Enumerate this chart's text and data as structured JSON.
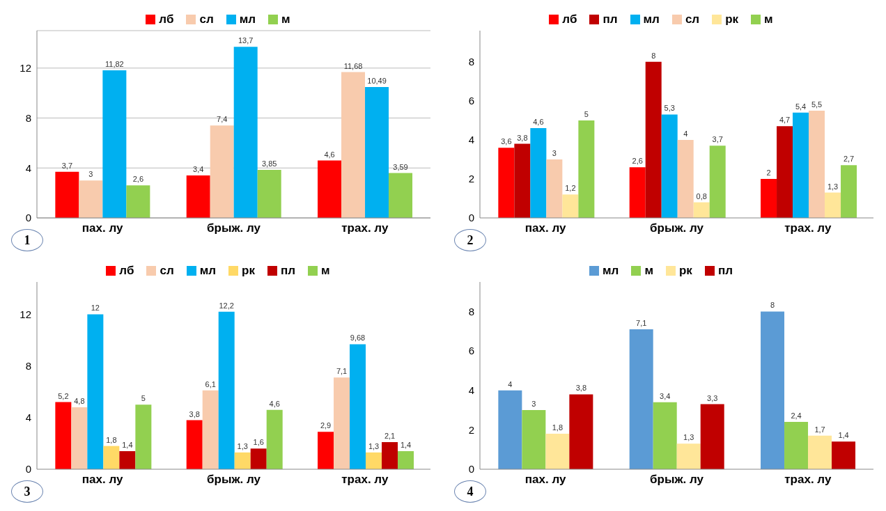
{
  "chart_data": [
    {
      "type": "bar",
      "categories": [
        "пах. лу",
        "брыж. лу",
        "трах. лу"
      ],
      "ylim": [
        0,
        15
      ],
      "yticks": [
        0,
        4,
        8,
        12
      ],
      "grid": "y",
      "legend": "top",
      "annotations": [
        "1"
      ],
      "series": [
        {
          "name": "лб",
          "color": "#ff0000",
          "values": [
            3.7,
            3.4,
            4.6
          ],
          "value_labels": [
            "3,7",
            "3,4",
            "4,6"
          ]
        },
        {
          "name": "сл",
          "color": "#f8cbad",
          "values": [
            3,
            7.4,
            11.68
          ],
          "value_labels": [
            "3",
            "7,4",
            "11,68"
          ]
        },
        {
          "name": "мл",
          "color": "#00b0f0",
          "values": [
            11.82,
            13.7,
            10.49
          ],
          "value_labels": [
            "11,82",
            "13,7",
            "10,49"
          ]
        },
        {
          "name": "м",
          "color": "#92d050",
          "values": [
            2.6,
            3.85,
            3.59
          ],
          "value_labels": [
            "2,6",
            "3,85",
            "3,59"
          ]
        }
      ]
    },
    {
      "type": "bar",
      "categories": [
        "пах. лу",
        "брыж. лу",
        "трах. лу"
      ],
      "ylim": [
        0,
        9.6
      ],
      "yticks": [
        0,
        2,
        4,
        6,
        8
      ],
      "grid": false,
      "legend": "top",
      "annotations": [
        "2"
      ],
      "series": [
        {
          "name": "лб",
          "color": "#ff0000",
          "values": [
            3.6,
            2.6,
            2
          ],
          "value_labels": [
            "3,6",
            "2,6",
            "2"
          ]
        },
        {
          "name": "пл",
          "color": "#c00000",
          "values": [
            3.8,
            8,
            4.7
          ],
          "value_labels": [
            "3,8",
            "8",
            "4,7"
          ]
        },
        {
          "name": "мл",
          "color": "#00b0f0",
          "values": [
            4.6,
            5.3,
            5.4
          ],
          "value_labels": [
            "4,6",
            "5,3",
            "5,4"
          ]
        },
        {
          "name": "сл",
          "color": "#f8cbad",
          "values": [
            3,
            4,
            5.5
          ],
          "value_labels": [
            "3",
            "4",
            "5,5"
          ]
        },
        {
          "name": "рк",
          "color": "#ffe699",
          "values": [
            1.2,
            0.8,
            1.3
          ],
          "value_labels": [
            "1,2",
            "0,8",
            "1,3"
          ]
        },
        {
          "name": "м",
          "color": "#92d050",
          "values": [
            5,
            3.7,
            2.7
          ],
          "value_labels": [
            "5",
            "3,7",
            "2,7"
          ]
        }
      ]
    },
    {
      "type": "bar",
      "categories": [
        "пах. лу",
        "брыж. лу",
        "трах. лу"
      ],
      "ylim": [
        0,
        14.5
      ],
      "yticks": [
        0,
        4,
        8,
        12
      ],
      "grid": false,
      "legend": "top",
      "annotations": [
        "3"
      ],
      "series": [
        {
          "name": "лб",
          "color": "#ff0000",
          "values": [
            5.2,
            3.8,
            2.9
          ],
          "value_labels": [
            "5,2",
            "3,8",
            "2,9"
          ]
        },
        {
          "name": "сл",
          "color": "#f8cbad",
          "values": [
            4.8,
            6.1,
            7.1
          ],
          "value_labels": [
            "4,8",
            "6,1",
            "7,1"
          ]
        },
        {
          "name": "мл",
          "color": "#00b0f0",
          "values": [
            12,
            12.2,
            9.68
          ],
          "value_labels": [
            "12",
            "12,2",
            "9,68"
          ]
        },
        {
          "name": "рк",
          "color": "#ffd966",
          "values": [
            1.8,
            1.3,
            1.3
          ],
          "value_labels": [
            "1,8",
            "1,3",
            "1,3"
          ]
        },
        {
          "name": "пл",
          "color": "#c00000",
          "values": [
            1.4,
            1.6,
            2.1
          ],
          "value_labels": [
            "1,4",
            "1,6",
            "2,1"
          ]
        },
        {
          "name": "м",
          "color": "#92d050",
          "values": [
            5,
            4.6,
            1.4
          ],
          "value_labels": [
            "5",
            "4,6",
            "1,4"
          ]
        }
      ]
    },
    {
      "type": "bar",
      "categories": [
        "пах. лу",
        "брыж. лу",
        "трах. лу"
      ],
      "ylim": [
        0,
        9.5
      ],
      "yticks": [
        0,
        2,
        4,
        6,
        8
      ],
      "grid": false,
      "legend": "top",
      "annotations": [
        "4"
      ],
      "series": [
        {
          "name": "мл",
          "color": "#5b9bd5",
          "values": [
            4,
            7.1,
            8
          ],
          "value_labels": [
            "4",
            "7,1",
            "8"
          ]
        },
        {
          "name": "м",
          "color": "#92d050",
          "values": [
            3,
            3.4,
            2.4
          ],
          "value_labels": [
            "3",
            "3,4",
            "2,4"
          ]
        },
        {
          "name": "рк",
          "color": "#ffe699",
          "values": [
            1.8,
            1.3,
            1.7
          ],
          "value_labels": [
            "1,8",
            "1,3",
            "1,7"
          ]
        },
        {
          "name": "пл",
          "color": "#c00000",
          "values": [
            3.8,
            3.3,
            1.4
          ],
          "value_labels": [
            "3,8",
            "3,3",
            "1,4"
          ]
        }
      ]
    }
  ]
}
